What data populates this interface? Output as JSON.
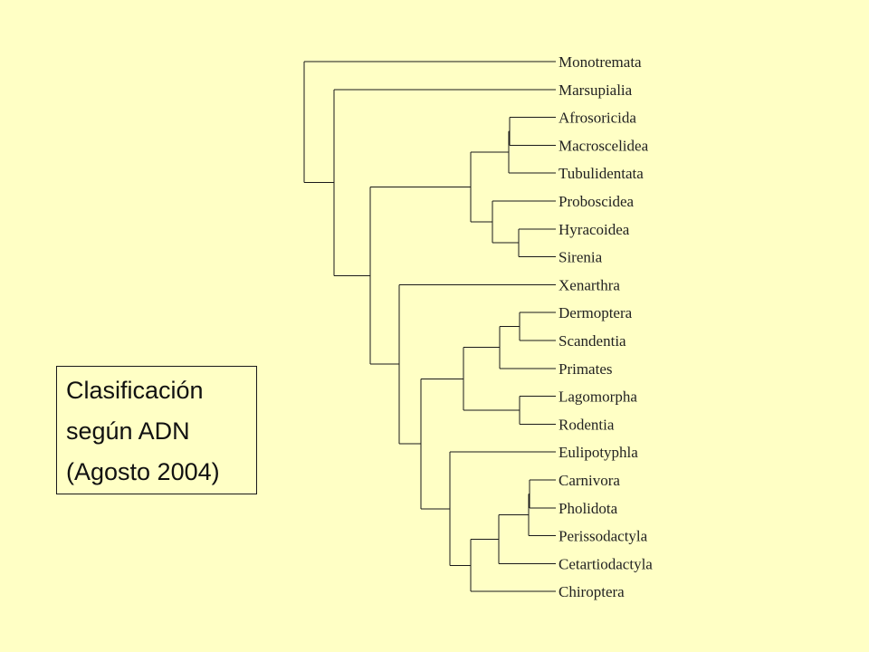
{
  "caption": {
    "line1": "Clasificación",
    "line2": "según ADN",
    "line3": "(Agosto 2004)"
  },
  "taxa": [
    "Monotremata",
    "Marsupialia",
    "Afrosoricida",
    "Macroscelidea",
    "Tubulidentata",
    "Proboscidea",
    "Hyracoidea",
    "Sirenia",
    "Xenarthra",
    "Dermoptera",
    "Scandentia",
    "Primates",
    "Lagomorpha",
    "Rodentia",
    "Eulipotyphla",
    "Carnivora",
    "Pholidota",
    "Perissodactyla",
    "Cetartiodactyla",
    "Chiroptera"
  ],
  "colors": {
    "background": "#FFFFC5",
    "lines": "#1a1a1a",
    "text": "#222222"
  }
}
